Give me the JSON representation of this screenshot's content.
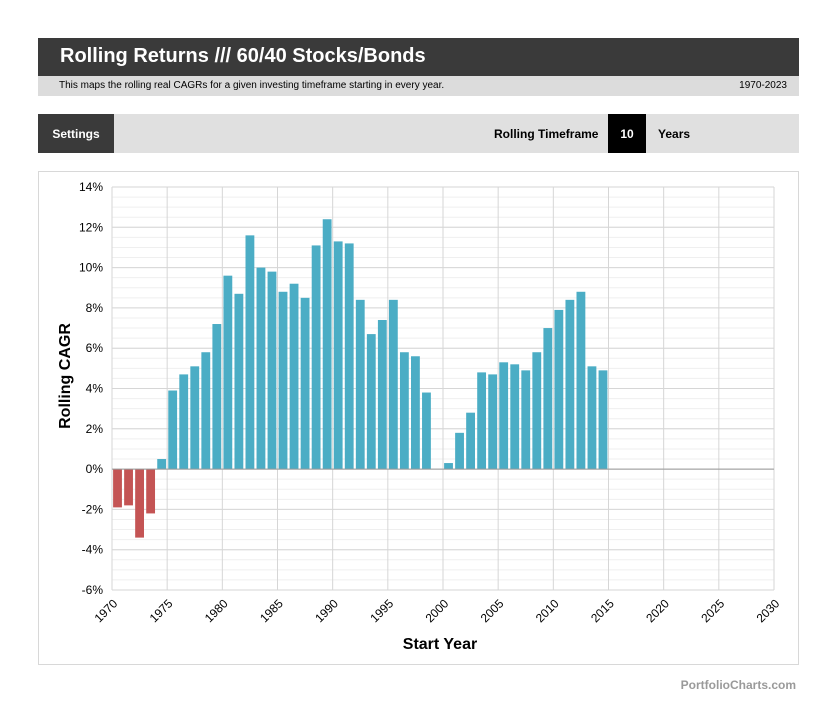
{
  "header": {
    "title": "Rolling Returns /// 60/40 Stocks/Bonds",
    "description": "This maps the rolling real CAGRs for a given investing timeframe starting in every year.",
    "date_range": "1970-2023"
  },
  "settings": {
    "button_label": "Settings",
    "timeframe_label": "Rolling Timeframe",
    "timeframe_value": "10",
    "timeframe_unit": "Years"
  },
  "footer": {
    "brand": "PortfolioCharts.com"
  },
  "colors": {
    "positive": "#4badc5",
    "negative": "#c45454",
    "title_bg": "#3a3a3a"
  },
  "chart_data": {
    "type": "bar",
    "xlabel": "Start Year",
    "ylabel": "Rolling CAGR",
    "xlim": [
      1970,
      2030
    ],
    "ylim": [
      -6,
      14
    ],
    "x_ticks": [
      1970,
      1975,
      1980,
      1985,
      1990,
      1995,
      2000,
      2005,
      2010,
      2015,
      2020,
      2025,
      2030
    ],
    "y_ticks": [
      "-6%",
      "-4%",
      "-2%",
      "0%",
      "2%",
      "4%",
      "6%",
      "8%",
      "10%",
      "12%",
      "14%"
    ],
    "grid": true,
    "categories": [
      1970,
      1971,
      1972,
      1973,
      1974,
      1975,
      1976,
      1977,
      1978,
      1979,
      1980,
      1981,
      1982,
      1983,
      1984,
      1985,
      1986,
      1987,
      1988,
      1989,
      1990,
      1991,
      1992,
      1993,
      1994,
      1995,
      1996,
      1997,
      1998,
      1999,
      2000,
      2001,
      2002,
      2003,
      2004,
      2005,
      2006,
      2007,
      2008,
      2009,
      2010,
      2011,
      2012,
      2013,
      2014
    ],
    "values": [
      -1.9,
      -1.8,
      -3.4,
      -2.2,
      0.5,
      3.9,
      4.7,
      5.1,
      5.8,
      7.2,
      9.6,
      8.7,
      11.6,
      10.0,
      9.8,
      8.8,
      9.2,
      8.5,
      11.1,
      12.4,
      11.3,
      11.2,
      8.4,
      6.7,
      7.4,
      8.4,
      5.8,
      5.6,
      3.8,
      0.0,
      0.3,
      1.8,
      2.8,
      4.8,
      4.7,
      5.3,
      5.2,
      4.9,
      5.8,
      7.0,
      7.9,
      8.4,
      8.8,
      5.1,
      4.9
    ]
  }
}
